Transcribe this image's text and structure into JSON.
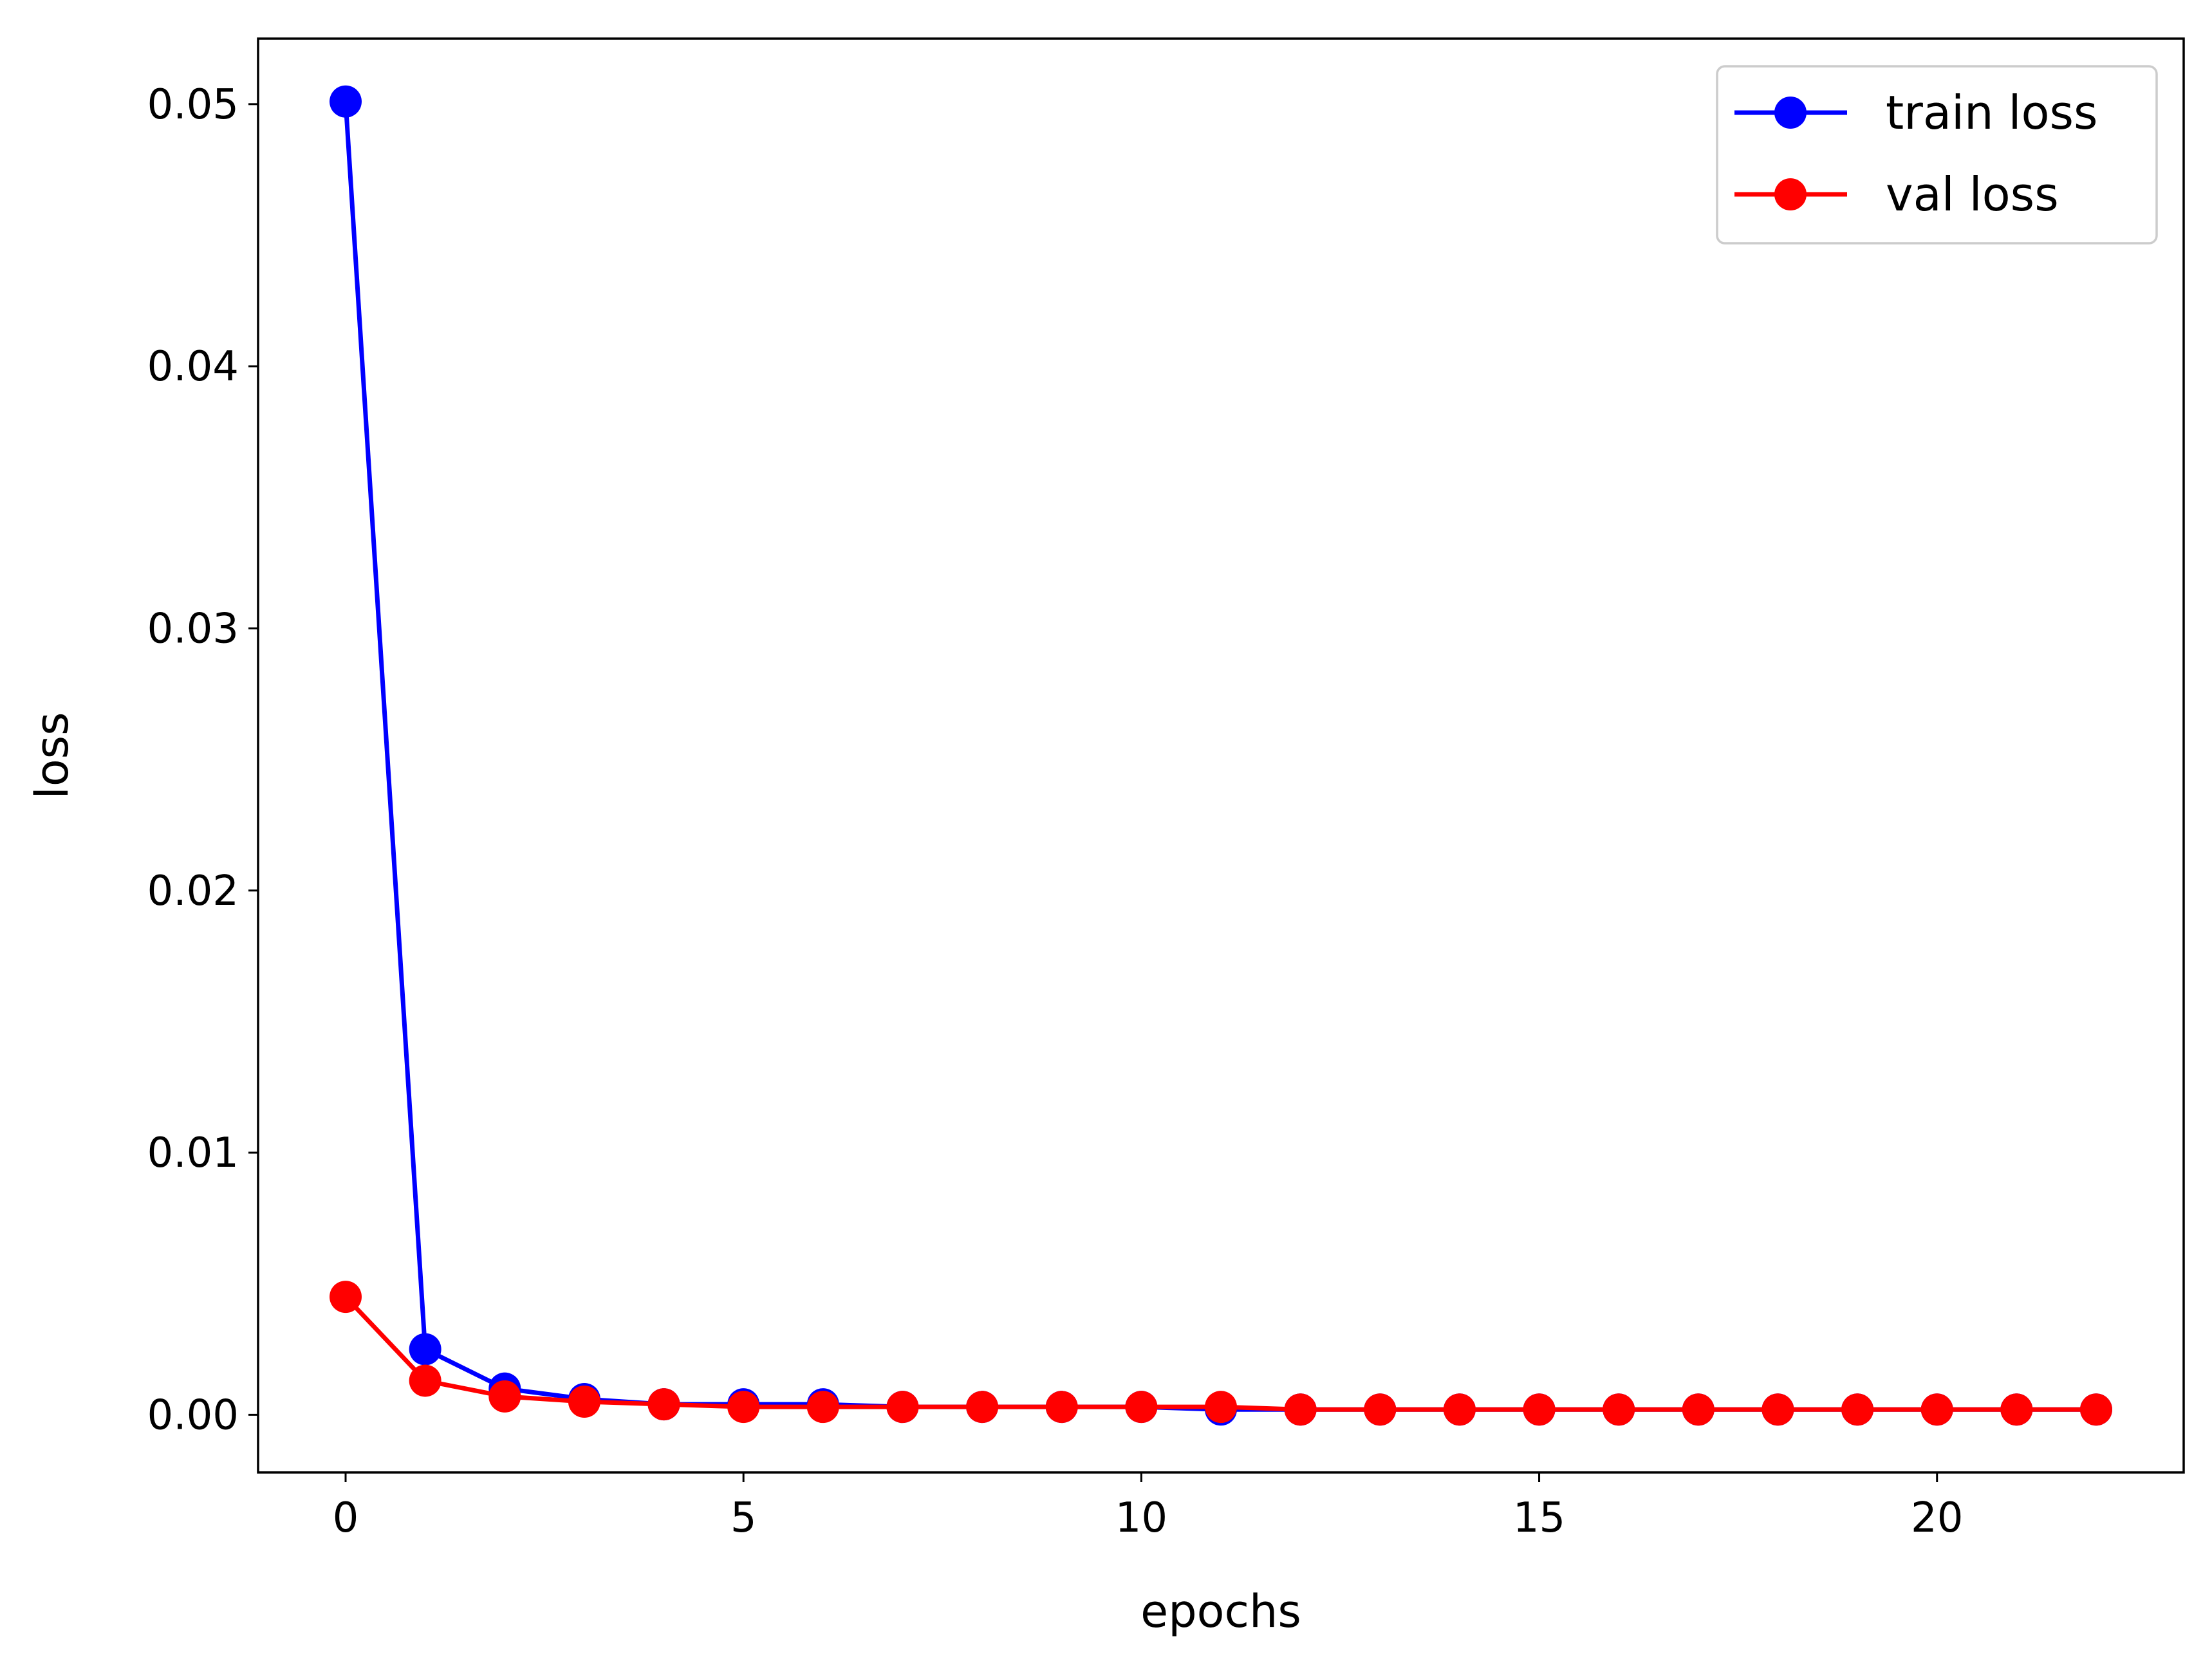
{
  "chart_data": {
    "type": "line",
    "xlabel": "epochs",
    "ylabel": "loss",
    "xlim": [
      -1.1,
      23.1
    ],
    "ylim": [
      -0.0022,
      0.0525
    ],
    "xticks": [
      0,
      5,
      10,
      15,
      20
    ],
    "yticks": [
      0.0,
      0.01,
      0.02,
      0.03,
      0.04,
      0.05
    ],
    "ytick_labels": [
      "0.00",
      "0.01",
      "0.02",
      "0.03",
      "0.04",
      "0.05"
    ],
    "grid": false,
    "legend": {
      "position": "top-right"
    },
    "x": [
      0,
      1,
      2,
      3,
      4,
      5,
      6,
      7,
      8,
      9,
      10,
      11,
      12,
      13,
      14,
      15,
      16,
      17,
      18,
      19,
      20,
      21,
      22
    ],
    "series": [
      {
        "name": "train loss",
        "color": "#0000ff",
        "values": [
          0.0501,
          0.0025,
          0.001,
          0.0006,
          0.0004,
          0.0004,
          0.0004,
          0.0003,
          0.0003,
          0.0003,
          0.0003,
          0.0002,
          0.0002,
          0.0002,
          0.0002,
          0.0002,
          0.0002,
          0.0002,
          0.0002,
          0.0002,
          0.0002,
          0.0002,
          0.0002
        ]
      },
      {
        "name": "val loss",
        "color": "#ff0000",
        "values": [
          0.0045,
          0.0013,
          0.0007,
          0.0005,
          0.0004,
          0.0003,
          0.0003,
          0.0003,
          0.0003,
          0.0003,
          0.0003,
          0.0003,
          0.0002,
          0.0002,
          0.0002,
          0.0002,
          0.0002,
          0.0002,
          0.0002,
          0.0002,
          0.0002,
          0.0002,
          0.0002
        ]
      }
    ]
  }
}
